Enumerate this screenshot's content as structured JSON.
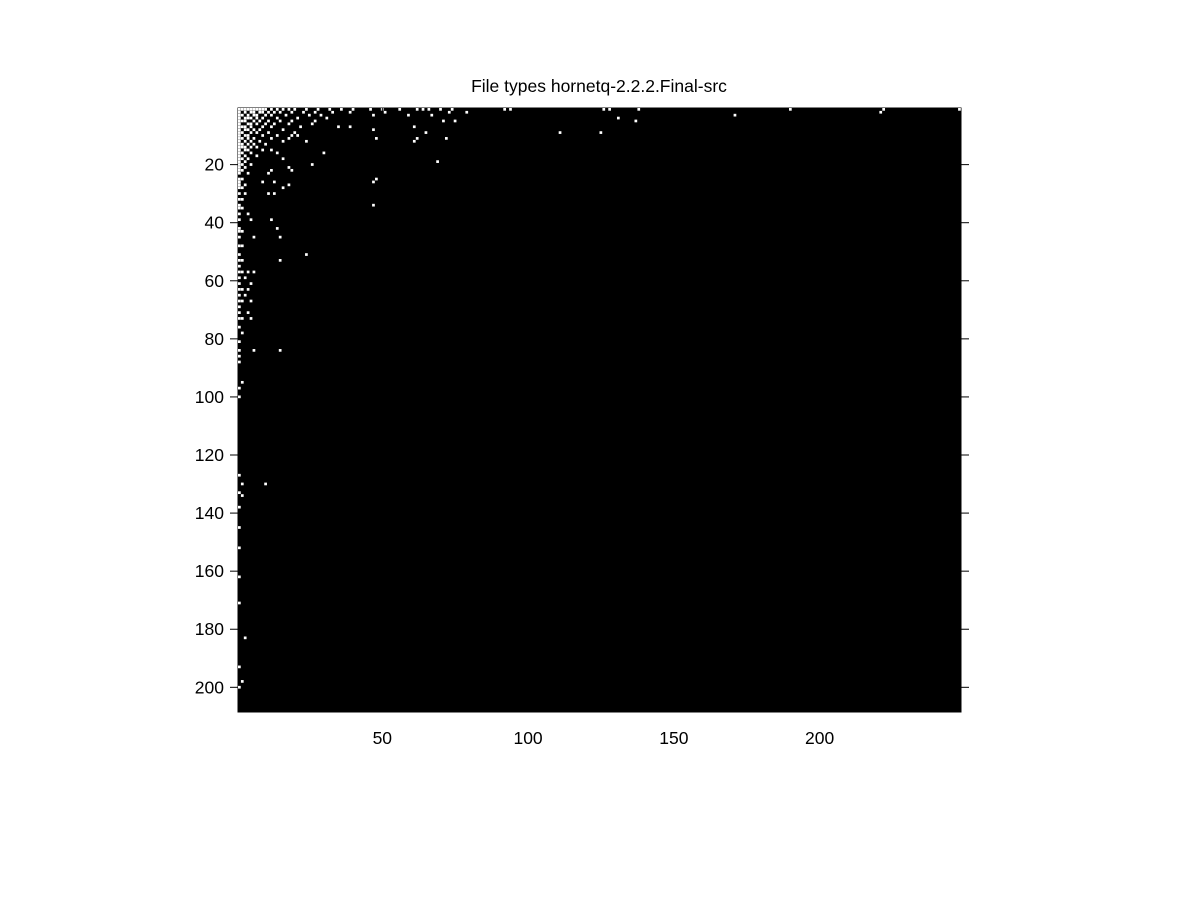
{
  "chart_data": {
    "type": "heatmap",
    "title": "File types hornetq-2.2.2.Final-src",
    "xlabel": "",
    "ylabel": "",
    "xlim": [
      0.5,
      248.5
    ],
    "ylim": [
      0.5,
      208.5
    ],
    "y_reversed": true,
    "x_ticks": [
      50,
      100,
      150,
      200
    ],
    "y_ticks": [
      20,
      40,
      60,
      80,
      100,
      120,
      140,
      160,
      180,
      200
    ],
    "grid": false,
    "colormap": {
      "zero": "#000000",
      "nonzero": "#ffffff"
    },
    "points": [
      [
        1,
        1
      ],
      [
        2,
        1
      ],
      [
        3,
        1
      ],
      [
        4,
        1
      ],
      [
        5,
        1
      ],
      [
        6,
        1
      ],
      [
        7,
        1
      ],
      [
        8,
        1
      ],
      [
        9,
        1
      ],
      [
        10,
        1
      ],
      [
        12,
        1
      ],
      [
        14,
        1
      ],
      [
        16,
        1
      ],
      [
        18,
        1
      ],
      [
        20,
        1
      ],
      [
        24,
        1
      ],
      [
        28,
        1
      ],
      [
        32,
        1
      ],
      [
        36,
        1
      ],
      [
        40,
        1
      ],
      [
        46,
        1
      ],
      [
        50,
        1
      ],
      [
        56,
        1
      ],
      [
        62,
        1
      ],
      [
        64,
        1
      ],
      [
        66,
        1
      ],
      [
        70,
        1
      ],
      [
        74,
        1
      ],
      [
        92,
        1
      ],
      [
        94,
        1
      ],
      [
        126,
        1
      ],
      [
        128,
        1
      ],
      [
        138,
        1
      ],
      [
        190,
        1
      ],
      [
        222,
        1
      ],
      [
        248,
        1
      ],
      [
        1,
        2
      ],
      [
        3,
        2
      ],
      [
        5,
        2
      ],
      [
        6,
        2
      ],
      [
        8,
        2
      ],
      [
        9,
        2
      ],
      [
        11,
        2
      ],
      [
        13,
        2
      ],
      [
        15,
        2
      ],
      [
        19,
        2
      ],
      [
        23,
        2
      ],
      [
        27,
        2
      ],
      [
        33,
        2
      ],
      [
        39,
        2
      ],
      [
        51,
        2
      ],
      [
        73,
        2
      ],
      [
        79,
        2
      ],
      [
        221,
        2
      ],
      [
        1,
        3
      ],
      [
        2,
        3
      ],
      [
        4,
        3
      ],
      [
        6,
        3
      ],
      [
        7,
        3
      ],
      [
        10,
        3
      ],
      [
        12,
        3
      ],
      [
        17,
        3
      ],
      [
        25,
        3
      ],
      [
        29,
        3
      ],
      [
        47,
        3
      ],
      [
        59,
        3
      ],
      [
        67,
        3
      ],
      [
        171,
        3
      ],
      [
        1,
        4
      ],
      [
        3,
        4
      ],
      [
        4,
        4
      ],
      [
        5,
        4
      ],
      [
        7,
        4
      ],
      [
        9,
        4
      ],
      [
        14,
        4
      ],
      [
        21,
        4
      ],
      [
        31,
        4
      ],
      [
        131,
        4
      ],
      [
        1,
        5
      ],
      [
        2,
        5
      ],
      [
        3,
        5
      ],
      [
        6,
        5
      ],
      [
        8,
        5
      ],
      [
        11,
        5
      ],
      [
        15,
        5
      ],
      [
        19,
        5
      ],
      [
        27,
        5
      ],
      [
        71,
        5
      ],
      [
        75,
        5
      ],
      [
        137,
        5
      ],
      [
        1,
        6
      ],
      [
        4,
        6
      ],
      [
        5,
        6
      ],
      [
        7,
        6
      ],
      [
        10,
        6
      ],
      [
        13,
        6
      ],
      [
        18,
        6
      ],
      [
        26,
        6
      ],
      [
        1,
        7
      ],
      [
        2,
        7
      ],
      [
        3,
        7
      ],
      [
        5,
        7
      ],
      [
        9,
        7
      ],
      [
        12,
        7
      ],
      [
        22,
        7
      ],
      [
        35,
        7
      ],
      [
        39,
        7
      ],
      [
        61,
        7
      ],
      [
        1,
        8
      ],
      [
        3,
        8
      ],
      [
        4,
        8
      ],
      [
        6,
        8
      ],
      [
        8,
        8
      ],
      [
        16,
        8
      ],
      [
        47,
        8
      ],
      [
        1,
        9
      ],
      [
        2,
        9
      ],
      [
        5,
        9
      ],
      [
        7,
        9
      ],
      [
        11,
        9
      ],
      [
        20,
        9
      ],
      [
        65,
        9
      ],
      [
        111,
        9
      ],
      [
        125,
        9
      ],
      [
        1,
        10
      ],
      [
        3,
        10
      ],
      [
        4,
        10
      ],
      [
        9,
        10
      ],
      [
        14,
        10
      ],
      [
        19,
        10
      ],
      [
        21,
        10
      ],
      [
        1,
        11
      ],
      [
        2,
        11
      ],
      [
        4,
        11
      ],
      [
        6,
        11
      ],
      [
        12,
        11
      ],
      [
        18,
        11
      ],
      [
        48,
        11
      ],
      [
        62,
        11
      ],
      [
        72,
        11
      ],
      [
        1,
        12
      ],
      [
        3,
        12
      ],
      [
        5,
        12
      ],
      [
        8,
        12
      ],
      [
        16,
        12
      ],
      [
        24,
        12
      ],
      [
        61,
        12
      ],
      [
        1,
        13
      ],
      [
        2,
        13
      ],
      [
        4,
        13
      ],
      [
        6,
        13
      ],
      [
        10,
        13
      ],
      [
        1,
        14
      ],
      [
        2,
        14
      ],
      [
        3,
        14
      ],
      [
        5,
        14
      ],
      [
        7,
        14
      ],
      [
        1,
        15
      ],
      [
        3,
        15
      ],
      [
        4,
        15
      ],
      [
        9,
        15
      ],
      [
        12,
        15
      ],
      [
        1,
        16
      ],
      [
        2,
        16
      ],
      [
        5,
        16
      ],
      [
        14,
        16
      ],
      [
        30,
        16
      ],
      [
        1,
        17
      ],
      [
        3,
        17
      ],
      [
        7,
        17
      ],
      [
        1,
        18
      ],
      [
        2,
        18
      ],
      [
        4,
        18
      ],
      [
        16,
        18
      ],
      [
        1,
        19
      ],
      [
        3,
        19
      ],
      [
        69,
        19
      ],
      [
        1,
        20
      ],
      [
        2,
        20
      ],
      [
        5,
        20
      ],
      [
        26,
        20
      ],
      [
        1,
        21
      ],
      [
        3,
        21
      ],
      [
        18,
        21
      ],
      [
        1,
        22
      ],
      [
        2,
        22
      ],
      [
        12,
        22
      ],
      [
        19,
        22
      ],
      [
        1,
        23
      ],
      [
        4,
        23
      ],
      [
        11,
        23
      ],
      [
        1,
        25
      ],
      [
        2,
        25
      ],
      [
        48,
        25
      ],
      [
        1,
        26
      ],
      [
        9,
        26
      ],
      [
        13,
        26
      ],
      [
        47,
        26
      ],
      [
        1,
        27
      ],
      [
        3,
        27
      ],
      [
        18,
        27
      ],
      [
        1,
        28
      ],
      [
        2,
        28
      ],
      [
        16,
        28
      ],
      [
        1,
        30
      ],
      [
        3,
        30
      ],
      [
        11,
        30
      ],
      [
        13,
        30
      ],
      [
        1,
        32
      ],
      [
        2,
        32
      ],
      [
        1,
        34
      ],
      [
        47,
        34
      ],
      [
        1,
        35
      ],
      [
        2,
        35
      ],
      [
        1,
        37
      ],
      [
        4,
        37
      ],
      [
        1,
        39
      ],
      [
        5,
        39
      ],
      [
        12,
        39
      ],
      [
        1,
        42
      ],
      [
        14,
        42
      ],
      [
        1,
        43
      ],
      [
        2,
        43
      ],
      [
        1,
        45
      ],
      [
        6,
        45
      ],
      [
        15,
        45
      ],
      [
        1,
        48
      ],
      [
        2,
        48
      ],
      [
        1,
        51
      ],
      [
        24,
        51
      ],
      [
        1,
        53
      ],
      [
        2,
        53
      ],
      [
        15,
        53
      ],
      [
        1,
        55
      ],
      [
        1,
        57
      ],
      [
        2,
        57
      ],
      [
        4,
        57
      ],
      [
        6,
        57
      ],
      [
        1,
        59
      ],
      [
        3,
        59
      ],
      [
        1,
        61
      ],
      [
        5,
        61
      ],
      [
        1,
        63
      ],
      [
        2,
        63
      ],
      [
        4,
        63
      ],
      [
        1,
        65
      ],
      [
        3,
        65
      ],
      [
        1,
        67
      ],
      [
        2,
        67
      ],
      [
        5,
        67
      ],
      [
        1,
        69
      ],
      [
        1,
        71
      ],
      [
        4,
        71
      ],
      [
        1,
        73
      ],
      [
        2,
        73
      ],
      [
        5,
        73
      ],
      [
        1,
        76
      ],
      [
        2,
        78
      ],
      [
        1,
        81
      ],
      [
        1,
        84
      ],
      [
        6,
        84
      ],
      [
        15,
        84
      ],
      [
        1,
        86
      ],
      [
        1,
        88
      ],
      [
        2,
        95
      ],
      [
        1,
        97
      ],
      [
        1,
        100
      ],
      [
        1,
        127
      ],
      [
        2,
        130
      ],
      [
        10,
        130
      ],
      [
        1,
        133
      ],
      [
        2,
        134
      ],
      [
        1,
        138
      ],
      [
        1,
        145
      ],
      [
        1,
        152
      ],
      [
        1,
        162
      ],
      [
        1,
        171
      ],
      [
        3,
        183
      ],
      [
        1,
        193
      ],
      [
        2,
        198
      ],
      [
        1,
        200
      ]
    ]
  }
}
